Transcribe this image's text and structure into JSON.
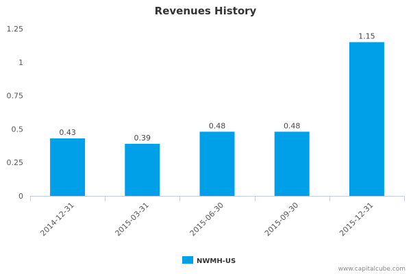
{
  "chart_data": {
    "type": "bar",
    "title": "Revenues History",
    "categories": [
      "2014-12-31",
      "2015-03-31",
      "2015-06-30",
      "2015-09-30",
      "2015-12-31"
    ],
    "series": [
      {
        "name": "NWMH-US",
        "values": [
          0.43,
          0.39,
          0.48,
          0.48,
          1.15
        ],
        "color": "#00a0e9"
      }
    ],
    "data_labels": [
      "0.43",
      "0.39",
      "0.48",
      "0.48",
      "1.15"
    ],
    "y_ticks": [
      0,
      0.25,
      0.5,
      0.75,
      1,
      1.25
    ],
    "y_tick_labels": [
      "0",
      "0.25",
      "0.5",
      "0.75",
      "1",
      "1.25"
    ],
    "ylim": [
      0,
      1.25
    ],
    "xlabel": "",
    "ylabel": "",
    "grid": false,
    "legend_position": "bottom-center"
  },
  "watermark": "www.capitalcube.com",
  "colors": {
    "axis": "#c0d0e0",
    "text": "#555555"
  }
}
